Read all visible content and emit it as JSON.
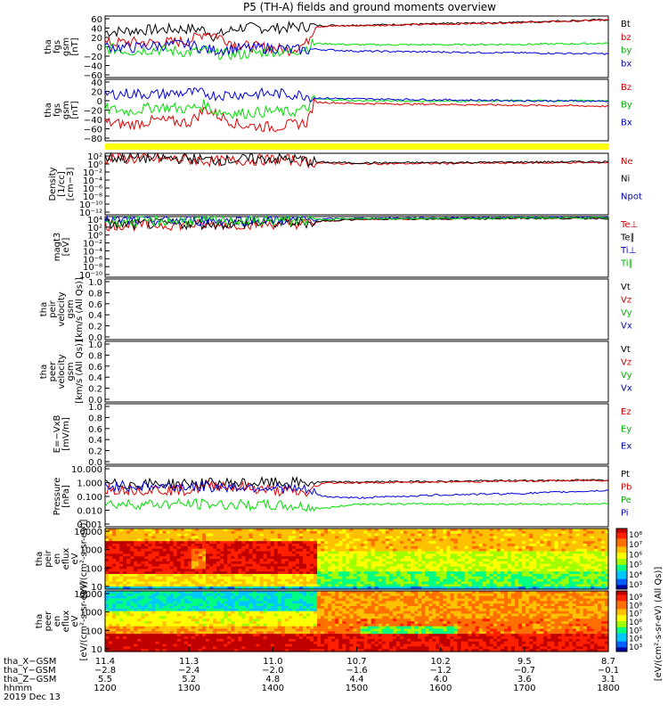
{
  "title": "P5 (TH-A) fields and ground moments overview",
  "colors": {
    "black": "#000000",
    "red": "#e00000",
    "green": "#00e000",
    "blue": "#0000e0",
    "yellow": "#ffff00",
    "text_red": "#d40000",
    "text_green": "#00b000",
    "text_blue": "#0000c8"
  },
  "chart_data": [
    {
      "type": "line",
      "ylabel": [
        "tha",
        "fgs",
        "gsm",
        "[nT]"
      ],
      "ticks": [
        "60",
        "40",
        "20",
        "0",
        "−20",
        "−40",
        "−60"
      ],
      "ylim": [
        -70,
        65
      ],
      "legend": [
        {
          "label": "Bt",
          "color": "black"
        },
        {
          "label": "bz",
          "color": "red"
        },
        {
          "label": "by",
          "color": "green"
        },
        {
          "label": "bx",
          "color": "blue"
        }
      ],
      "series": [
        {
          "label": "Bt",
          "color": "black",
          "x": [
            1200,
            1230,
            1260,
            1300,
            1320,
            1330,
            1360,
            1400,
            1420,
            1440,
            1450,
            1500,
            1600,
            1700,
            1800
          ],
          "y": [
            30,
            33,
            35,
            37,
            35,
            20,
            40,
            38,
            40,
            42,
            44,
            45,
            48,
            52,
            57
          ]
        },
        {
          "label": "bz",
          "color": "red",
          "x": [
            1200,
            1230,
            1260,
            1300,
            1320,
            1330,
            1360,
            1400,
            1420,
            1440,
            1450,
            1500,
            1600,
            1700,
            1800
          ],
          "y": [
            5,
            8,
            6,
            10,
            30,
            25,
            0,
            -5,
            -10,
            5,
            42,
            44,
            47,
            51,
            56
          ]
        },
        {
          "label": "by",
          "color": "green",
          "x": [
            1200,
            1230,
            1260,
            1300,
            1320,
            1330,
            1360,
            1400,
            1420,
            1440,
            1450,
            1500,
            1600,
            1700,
            1800
          ],
          "y": [
            -5,
            -12,
            -8,
            -15,
            -10,
            -18,
            -20,
            -12,
            -15,
            -5,
            5,
            2,
            2,
            3,
            5
          ]
        },
        {
          "label": "bx",
          "color": "blue",
          "x": [
            1200,
            1230,
            1260,
            1300,
            1320,
            1330,
            1360,
            1400,
            1420,
            1440,
            1450,
            1500,
            1600,
            1700,
            1800
          ],
          "y": [
            -2,
            -5,
            0,
            3,
            -8,
            -10,
            -6,
            -5,
            -8,
            -10,
            -8,
            -12,
            -14,
            -16,
            -18
          ]
        }
      ]
    },
    {
      "type": "line",
      "ylabel": [
        "tha",
        "fgs",
        "gsm",
        "[nT]"
      ],
      "ticks": [
        "40",
        "20",
        "0",
        "−20",
        "−40",
        "−60",
        "−80"
      ],
      "ylim": [
        -90,
        45
      ],
      "legend": [
        {
          "label": "Bz",
          "color": "red"
        },
        {
          "label": "By",
          "color": "green"
        },
        {
          "label": "Bx",
          "color": "blue"
        }
      ],
      "series": [
        {
          "label": "Bz",
          "color": "red",
          "x": [
            1200,
            1230,
            1260,
            1300,
            1320,
            1330,
            1360,
            1400,
            1420,
            1440,
            1450,
            1500,
            1600,
            1700,
            1800
          ],
          "y": [
            -50,
            -55,
            -45,
            -50,
            -20,
            -30,
            -55,
            -60,
            -55,
            -50,
            -5,
            -8,
            -10,
            -12,
            -14
          ]
        },
        {
          "label": "By",
          "color": "green",
          "x": [
            1200,
            1230,
            1260,
            1300,
            1320,
            1330,
            1360,
            1400,
            1420,
            1440,
            1450,
            1500,
            1600,
            1700,
            1800
          ],
          "y": [
            -20,
            -25,
            -15,
            -20,
            -10,
            -25,
            -30,
            -25,
            -28,
            -20,
            2,
            -2,
            -3,
            -2,
            -2
          ]
        },
        {
          "label": "Bx",
          "color": "blue",
          "x": [
            1200,
            1230,
            1260,
            1300,
            1320,
            1330,
            1360,
            1400,
            1420,
            1440,
            1450,
            1500,
            1600,
            1700,
            1800
          ],
          "y": [
            12,
            14,
            12,
            16,
            14,
            10,
            12,
            14,
            12,
            10,
            4,
            2,
            0,
            -2,
            -3
          ]
        }
      ]
    },
    {
      "type": "line",
      "ylabel": [
        "Density",
        "[1/cc]",
        "[cm−3]"
      ],
      "ticks": [
        "10²",
        "10⁰",
        "10⁻²",
        "10⁻⁴",
        "10⁻⁶",
        "10⁻⁸",
        "10⁻¹⁰",
        "10⁻¹²"
      ],
      "ylim": [
        -12,
        2
      ],
      "legend": [
        {
          "label": "Ne",
          "color": "red"
        },
        {
          "label": "Ni",
          "color": "black"
        },
        {
          "label": "Npot",
          "color": "blue"
        }
      ],
      "series": [
        {
          "label": "Ne",
          "color": "red",
          "x": [
            1200,
            1300,
            1330,
            1400,
            1430,
            1450,
            1500,
            1600,
            1700,
            1800
          ],
          "y": [
            0.8,
            0.6,
            0.2,
            0.6,
            0.4,
            -0.2,
            -0.4,
            -0.3,
            -0.2,
            -0.1
          ]
        },
        {
          "label": "Ni",
          "color": "black",
          "x": [
            1200,
            1300,
            1330,
            1400,
            1430,
            1450,
            1500,
            1600,
            1700,
            1800
          ],
          "y": [
            1.0,
            0.8,
            0.4,
            0.8,
            0.6,
            0.0,
            -0.2,
            -0.1,
            0.0,
            0.1
          ]
        }
      ]
    },
    {
      "type": "line",
      "ylabel": [
        "magt3",
        "[eV]"
      ],
      "ticks": [
        "10⁴",
        "10²",
        "10⁰",
        "10⁻²",
        "10⁻⁴",
        "10⁻⁶",
        "10⁻⁸",
        "10⁻¹⁰"
      ],
      "ylim": [
        -10,
        4
      ],
      "legend": [
        {
          "label": "Te⊥",
          "color": "red"
        },
        {
          "label": "Te∥",
          "color": "black"
        },
        {
          "label": "Ti⊥",
          "color": "blue"
        },
        {
          "label": "Ti∥",
          "color": "green"
        }
      ],
      "series": [
        {
          "label": "Te⊥",
          "color": "red",
          "x": [
            1200,
            1300,
            1400,
            1440,
            1460,
            1500,
            1600,
            1700,
            1800
          ],
          "y": [
            2.0,
            2.1,
            2.3,
            2.4,
            2.9,
            3.4,
            3.5,
            3.6,
            3.6
          ]
        },
        {
          "label": "Te∥",
          "color": "black",
          "x": [
            1200,
            1300,
            1400,
            1440,
            1460,
            1500,
            1600,
            1700,
            1800
          ],
          "y": [
            2.2,
            2.3,
            2.5,
            2.6,
            3.0,
            3.4,
            3.5,
            3.6,
            3.6
          ]
        },
        {
          "label": "Ti⊥",
          "color": "blue",
          "x": [
            1200,
            1300,
            1400,
            1440,
            1460,
            1500,
            1600,
            1700,
            1800
          ],
          "y": [
            3.0,
            3.1,
            3.2,
            3.3,
            3.4,
            3.6,
            3.7,
            3.8,
            3.8
          ]
        },
        {
          "label": "Ti∥",
          "color": "green",
          "x": [
            1200,
            1300,
            1400,
            1440,
            1460,
            1500,
            1600,
            1700,
            1800
          ],
          "y": [
            2.9,
            3.0,
            3.1,
            3.2,
            3.4,
            3.5,
            3.6,
            3.7,
            3.7
          ]
        }
      ]
    },
    {
      "type": "line",
      "ylabel": [
        "tha",
        "peir",
        "velocity",
        "gsm",
        "[km/s (All Qs)]"
      ],
      "ticks": [
        "1.0",
        "0.8",
        "0.6",
        "0.4",
        "0.2",
        "0.0"
      ],
      "ylim": [
        0,
        1
      ],
      "legend": [
        {
          "label": "Vt",
          "color": "black"
        },
        {
          "label": "Vz",
          "color": "red"
        },
        {
          "label": "Vy",
          "color": "green"
        },
        {
          "label": "Vx",
          "color": "blue"
        }
      ],
      "series": []
    },
    {
      "type": "line",
      "ylabel": [
        "tha",
        "peer",
        "velocity",
        "gsm",
        "[km/s (All Qs)]"
      ],
      "ticks": [
        "1.0",
        "0.8",
        "0.6",
        "0.4",
        "0.2",
        "0.0"
      ],
      "ylim": [
        0,
        1
      ],
      "legend": [
        {
          "label": "Vt",
          "color": "black"
        },
        {
          "label": "Vz",
          "color": "red"
        },
        {
          "label": "Vy",
          "color": "green"
        },
        {
          "label": "Vx",
          "color": "blue"
        }
      ],
      "series": []
    },
    {
      "type": "line",
      "ylabel": [
        "E=−VxB",
        "[mV/m]"
      ],
      "ticks": [
        "1.0",
        "0.8",
        "0.6",
        "0.4",
        "0.2",
        "0.0"
      ],
      "ylim": [
        0,
        1
      ],
      "legend": [
        {
          "label": "Ez",
          "color": "red"
        },
        {
          "label": "Ey",
          "color": "green"
        },
        {
          "label": "Ex",
          "color": "blue"
        }
      ],
      "series": []
    },
    {
      "type": "line",
      "ylabel": [
        "Pressure",
        "[nPa]"
      ],
      "ticks": [
        "10.000",
        "1.000",
        "0.100",
        "0.010",
        "0.001"
      ],
      "ylim": [
        -3,
        1
      ],
      "legend": [
        {
          "label": "Pt",
          "color": "black"
        },
        {
          "label": "Pb",
          "color": "red"
        },
        {
          "label": "Pe",
          "color": "green"
        },
        {
          "label": "Pi",
          "color": "blue"
        }
      ],
      "series": [
        {
          "label": "Pt",
          "color": "black",
          "x": [
            1200,
            1300,
            1400,
            1440,
            1460,
            1500,
            1600,
            1700,
            1800
          ],
          "y": [
            -0.2,
            -0.15,
            -0.1,
            -0.1,
            -0.05,
            -0.05,
            0.0,
            0.05,
            0.08
          ]
        },
        {
          "label": "Pb",
          "color": "red",
          "x": [
            1200,
            1300,
            1330,
            1400,
            1440,
            1460,
            1500,
            1600,
            1700,
            1800
          ],
          "y": [
            -0.5,
            -0.6,
            -0.2,
            -0.6,
            -0.8,
            -0.1,
            -0.1,
            -0.05,
            0.02,
            0.06
          ]
        },
        {
          "label": "Pe",
          "color": "green",
          "x": [
            1200,
            1300,
            1400,
            1440,
            1460,
            1500,
            1600,
            1700,
            1800
          ],
          "y": [
            -1.5,
            -1.5,
            -1.6,
            -1.7,
            -1.8,
            -1.5,
            -1.5,
            -1.5,
            -1.5
          ]
        },
        {
          "label": "Pi",
          "color": "blue",
          "x": [
            1200,
            1300,
            1400,
            1440,
            1460,
            1500,
            1600,
            1700,
            1800
          ],
          "y": [
            -0.3,
            -0.35,
            -0.4,
            -0.6,
            -1.0,
            -1.1,
            -0.9,
            -0.8,
            -0.6
          ]
        }
      ]
    },
    {
      "type": "heatmap",
      "ylabel": [
        "tha",
        "peir",
        "en",
        "eflux",
        "eV",
        "[eV/(cm²-s-sr-eV)]"
      ],
      "ticks": [
        "10000",
        "1000",
        "100",
        "10"
      ],
      "colorbar_ticks": [
        "10⁸",
        "10⁷",
        "10⁶",
        "10⁵",
        "10⁴",
        "10³"
      ],
      "colorbar_label": "[eV/(cm²-s-sr-eV) (All Qs)]"
    },
    {
      "type": "heatmap",
      "ylabel": [
        "tha",
        "peer",
        "en",
        "eflux",
        "eV",
        "[eV/(cm²-s-sr-eV)]"
      ],
      "ticks": [
        "10000",
        "1000",
        "100",
        "10"
      ],
      "colorbar_ticks": [
        "10⁹",
        "10⁸",
        "10⁷",
        "10⁶",
        "10⁵",
        "10⁴",
        "10³"
      ],
      "colorbar_label": "[eV/(cm²-s-sr-eV) (All Qs)]"
    }
  ],
  "xaxis": {
    "rows": [
      {
        "label": "tha_X−GSM",
        "values": [
          "11.4",
          "11.3",
          "11.0",
          "10.7",
          "10.2",
          "9.5",
          "8.7"
        ]
      },
      {
        "label": "tha_Y−GSM",
        "values": [
          "−2.8",
          "−2.4",
          "−2.0",
          "−1.6",
          "−1.2",
          "−0.7",
          "−0.1"
        ]
      },
      {
        "label": "tha_Z−GSM",
        "values": [
          "5.5",
          "5.2",
          "4.8",
          "4.4",
          "4.0",
          "3.6",
          "3.1"
        ]
      },
      {
        "label": "hhmm",
        "values": [
          "1200",
          "1300",
          "1400",
          "1500",
          "1600",
          "1700",
          "1800"
        ]
      }
    ],
    "date": "2019 Dec 13"
  },
  "colorbar_label": "[eV/(cm²-s-sr-eV) (All Qs)]"
}
